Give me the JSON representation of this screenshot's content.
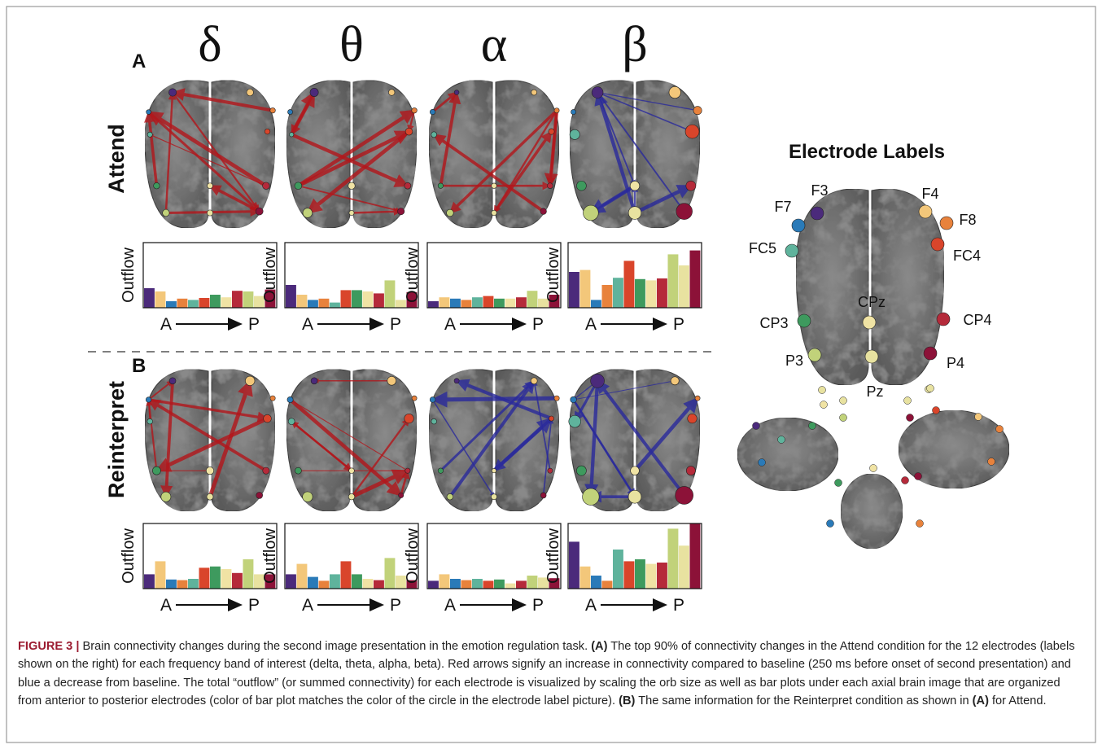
{
  "figure": {
    "bands": [
      "δ",
      "θ",
      "α",
      "β"
    ],
    "bar_axis": {
      "y_label": "Outflow",
      "start": "A",
      "end": "P",
      "ylim": [
        0,
        1
      ]
    },
    "panels": [
      {
        "letter": "A",
        "condition": "Attend",
        "charts": [
          {
            "type": "bar",
            "arrow_color": "#b3161b",
            "values": [
              0.3,
              0.25,
              0.1,
              0.14,
              0.12,
              0.15,
              0.2,
              0.16,
              0.26,
              0.25,
              0.18,
              0.28
            ]
          },
          {
            "type": "bar",
            "arrow_color": "#b3161b",
            "values": [
              0.35,
              0.2,
              0.12,
              0.14,
              0.08,
              0.27,
              0.27,
              0.25,
              0.22,
              0.42,
              0.12,
              0.24
            ]
          },
          {
            "type": "bar",
            "arrow_color": "#b3161b",
            "values": [
              0.1,
              0.16,
              0.14,
              0.12,
              0.16,
              0.18,
              0.14,
              0.14,
              0.16,
              0.26,
              0.14,
              0.2
            ]
          },
          {
            "type": "bar",
            "arrow_color": "#2a2a9c",
            "values": [
              0.55,
              0.58,
              0.12,
              0.35,
              0.46,
              0.72,
              0.44,
              0.42,
              0.45,
              0.82,
              0.65,
              0.88
            ]
          }
        ]
      },
      {
        "letter": "B",
        "condition": "Reinterpret",
        "charts": [
          {
            "type": "bar",
            "arrow_color": "#b3161b",
            "values": [
              0.22,
              0.42,
              0.14,
              0.13,
              0.15,
              0.32,
              0.34,
              0.3,
              0.24,
              0.45,
              0.22,
              0.22
            ]
          },
          {
            "type": "bar",
            "arrow_color": "#b3161b",
            "values": [
              0.22,
              0.38,
              0.18,
              0.12,
              0.22,
              0.42,
              0.22,
              0.15,
              0.13,
              0.47,
              0.2,
              0.13
            ]
          },
          {
            "type": "bar",
            "arrow_color": "#2a2a9c",
            "values": [
              0.12,
              0.22,
              0.15,
              0.13,
              0.15,
              0.12,
              0.14,
              0.08,
              0.12,
              0.2,
              0.17,
              0.16
            ]
          },
          {
            "type": "bar",
            "arrow_color": "#2a2a9c",
            "values": [
              0.72,
              0.34,
              0.2,
              0.12,
              0.6,
              0.42,
              0.45,
              0.38,
              0.4,
              0.92,
              0.66,
              1.0
            ]
          }
        ]
      }
    ],
    "electrodes": {
      "title": "Electrode Labels",
      "items": [
        {
          "label": "F3",
          "color": "#4b2a7b"
        },
        {
          "label": "F4",
          "color": "#f3c77a"
        },
        {
          "label": "F7",
          "color": "#2a7ab8"
        },
        {
          "label": "F8",
          "color": "#e8823c"
        },
        {
          "label": "FC5",
          "color": "#5fb39c"
        },
        {
          "label": "FC4",
          "color": "#d9452b"
        },
        {
          "label": "CP3",
          "color": "#3e9a5e"
        },
        {
          "label": "CPz",
          "color": "#f0e3a4"
        },
        {
          "label": "CP4",
          "color": "#b52a3a"
        },
        {
          "label": "P3",
          "color": "#c1d27a"
        },
        {
          "label": "Pz",
          "color": "#e8e2a0"
        },
        {
          "label": "P4",
          "color": "#8c1238"
        }
      ]
    }
  },
  "caption": {
    "parts": [
      {
        "text": "FIGURE 3 |",
        "bold": true,
        "color": "#9b1b30"
      },
      {
        "text": " Brain connectivity changes during the second image presentation in the emotion regulation task. ",
        "bold": false
      },
      {
        "text": "(A)",
        "bold": true
      },
      {
        "text": " The top 90% of connectivity changes in the Attend condition for the 12 electrodes (labels shown on the right) for each frequency band of interest (delta, theta, alpha, beta). Red arrows signify an increase in connectivity compared to baseline (250 ms before onset of second presentation) and blue a decrease from baseline. The total “outflow” (or summed connectivity) for each electrode is visualized by scaling the orb size as well as bar plots under each axial brain image that are organized from anterior to posterior electrodes (color of bar plot matches the color of the circle in the electrode label picture). ",
        "bold": false
      },
      {
        "text": "(B)",
        "bold": true
      },
      {
        "text": " The same information for the Reinterpret condition as shown in ",
        "bold": false
      },
      {
        "text": "(A)",
        "bold": true
      },
      {
        "text": " for Attend.",
        "bold": false
      }
    ]
  }
}
